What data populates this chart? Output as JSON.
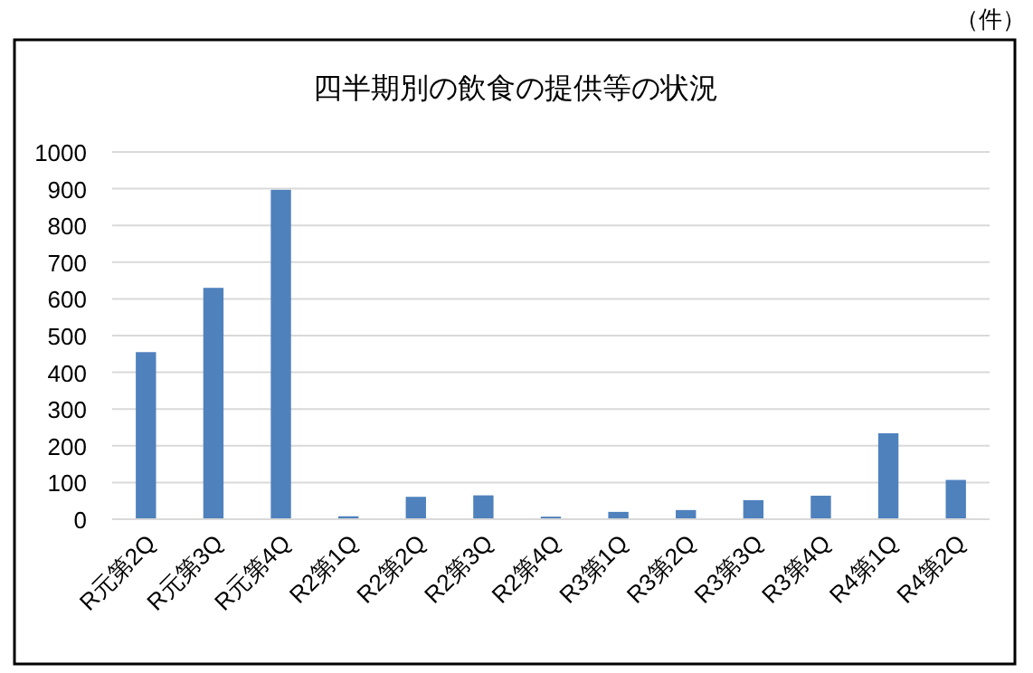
{
  "chart_data": {
    "type": "bar",
    "title": "四半期別の飲食の提供等の状況",
    "annotations": [
      "（件）"
    ],
    "categories": [
      "R元第2Q",
      "R元第3Q",
      "R元第4Q",
      "R2第1Q",
      "R2第2Q",
      "R2第3Q",
      "R2第4Q",
      "R3第1Q",
      "R3第2Q",
      "R3第3Q",
      "R3第4Q",
      "R4第1Q",
      "R4第2Q"
    ],
    "values": [
      455,
      630,
      897,
      8,
      61,
      65,
      7,
      20,
      25,
      52,
      64,
      234,
      107
    ],
    "color": "#4f81bd",
    "ylim": [
      0,
      1000
    ],
    "yticks": [
      0,
      100,
      200,
      300,
      400,
      500,
      600,
      700,
      800,
      900,
      1000
    ],
    "grid": "y"
  }
}
